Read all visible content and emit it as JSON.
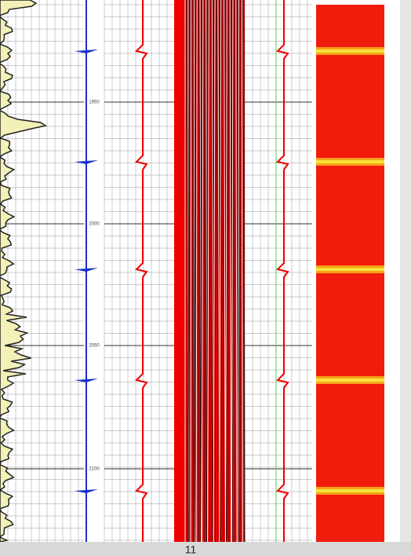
{
  "depth_track": {
    "labels": [
      "1950",
      "2000",
      "2050",
      "2100"
    ]
  },
  "footer": {
    "page_number": "11"
  }
}
